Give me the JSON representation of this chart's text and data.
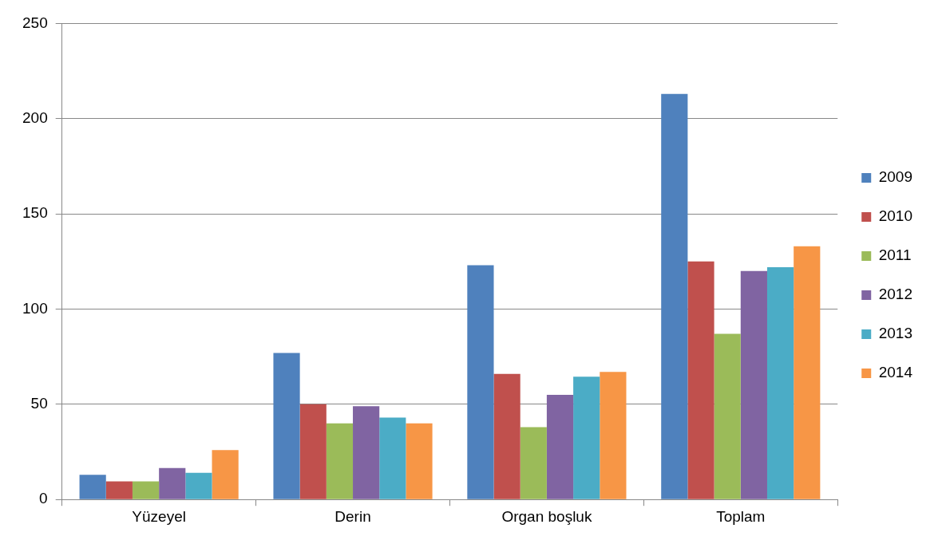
{
  "chart_data": {
    "type": "bar",
    "categories": [
      "Yüzeyel",
      "Derin",
      "Organ boşluk",
      "Toplam"
    ],
    "series": [
      {
        "name": "2009",
        "color": "#4f81bd",
        "values": [
          13,
          77,
          123,
          213
        ]
      },
      {
        "name": "2010",
        "color": "#c0504d",
        "values": [
          9.5,
          50,
          66,
          125
        ]
      },
      {
        "name": "2011",
        "color": "#9bbb59",
        "values": [
          9.5,
          40,
          38,
          87
        ]
      },
      {
        "name": "2012",
        "color": "#8064a2",
        "values": [
          16.5,
          49,
          55,
          120
        ]
      },
      {
        "name": "2013",
        "color": "#4bacc6",
        "values": [
          14,
          43,
          64.5,
          122
        ]
      },
      {
        "name": "2014",
        "color": "#f79646",
        "values": [
          26,
          40,
          67,
          133
        ]
      }
    ],
    "ylim": [
      0,
      250
    ],
    "yticks": [
      0,
      50,
      100,
      150,
      200,
      250
    ],
    "grid": "y",
    "legend": "right"
  }
}
